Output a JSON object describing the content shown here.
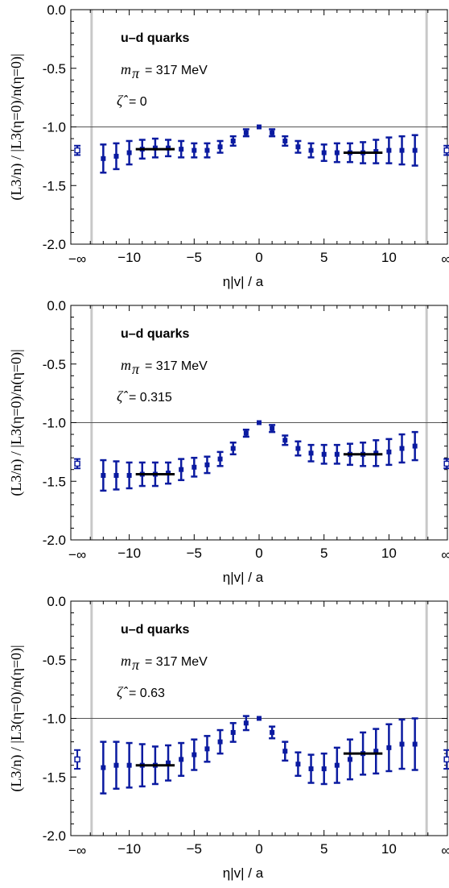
{
  "chart_data": [
    {
      "type": "scatter",
      "panel": 1,
      "annotations": {
        "title": "u–d quarks",
        "mass": "m",
        "mass_sub": "π",
        "mass_val": "= 317 MeV",
        "zeta": "ζ̂",
        "zeta_val": "= 0"
      },
      "xlabel": "η|v| / a",
      "ylabel": "(L3/n) / |L3(η=0)/n(η=0)|",
      "xlim": [
        -14.5,
        14.5
      ],
      "ylim": [
        -2.0,
        0.0
      ],
      "xticks": [
        "-10",
        "-5",
        "0",
        "5",
        "10"
      ],
      "yticks": [
        "0.0",
        "-0.5",
        "-1.0",
        "-1.5",
        "-2.0"
      ],
      "inf_labels": [
        "−∞",
        "∞"
      ],
      "reference_line": -1.0,
      "vertical_lines": [
        -12.9,
        12.9
      ],
      "points": [
        {
          "x": -12,
          "y": -1.27,
          "err": 0.12
        },
        {
          "x": -11,
          "y": -1.25,
          "err": 0.11
        },
        {
          "x": -10,
          "y": -1.22,
          "err": 0.1
        },
        {
          "x": -9,
          "y": -1.19,
          "err": 0.08
        },
        {
          "x": -8,
          "y": -1.18,
          "err": 0.08
        },
        {
          "x": -7,
          "y": -1.18,
          "err": 0.07
        },
        {
          "x": -6,
          "y": -1.19,
          "err": 0.07
        },
        {
          "x": -5,
          "y": -1.2,
          "err": 0.06
        },
        {
          "x": -4,
          "y": -1.2,
          "err": 0.06
        },
        {
          "x": -3,
          "y": -1.17,
          "err": 0.05
        },
        {
          "x": -2,
          "y": -1.12,
          "err": 0.04
        },
        {
          "x": -1,
          "y": -1.05,
          "err": 0.03
        },
        {
          "x": 0,
          "y": -1.0,
          "err": 0.0
        },
        {
          "x": 1,
          "y": -1.05,
          "err": 0.03
        },
        {
          "x": 2,
          "y": -1.12,
          "err": 0.04
        },
        {
          "x": 3,
          "y": -1.17,
          "err": 0.05
        },
        {
          "x": 4,
          "y": -1.2,
          "err": 0.06
        },
        {
          "x": 5,
          "y": -1.22,
          "err": 0.07
        },
        {
          "x": 6,
          "y": -1.22,
          "err": 0.08
        },
        {
          "x": 7,
          "y": -1.22,
          "err": 0.08
        },
        {
          "x": 8,
          "y": -1.22,
          "err": 0.09
        },
        {
          "x": 9,
          "y": -1.21,
          "err": 0.1
        },
        {
          "x": 10,
          "y": -1.2,
          "err": 0.11
        },
        {
          "x": 11,
          "y": -1.2,
          "err": 0.12
        },
        {
          "x": 12,
          "y": -1.2,
          "err": 0.13
        }
      ],
      "asymptotic_points": [
        {
          "side": "-inf",
          "y": -1.2,
          "err": 0.04
        },
        {
          "side": "inf",
          "y": -1.2,
          "err": 0.04
        }
      ],
      "fits": [
        {
          "x": [
            -9.5,
            -6.5
          ],
          "y": -1.19
        },
        {
          "x": [
            6.5,
            9.5
          ],
          "y": -1.22
        }
      ]
    },
    {
      "type": "scatter",
      "panel": 2,
      "annotations": {
        "title": "u–d quarks",
        "mass": "m",
        "mass_sub": "π",
        "mass_val": "= 317 MeV",
        "zeta": "ζ̂",
        "zeta_val": "= 0.315"
      },
      "xlabel": "η|v| / a",
      "ylabel": "(L3/n) / |L3(η=0)/n(η=0)|",
      "xlim": [
        -14.5,
        14.5
      ],
      "ylim": [
        -2.0,
        0.0
      ],
      "xticks": [
        "-10",
        "-5",
        "0",
        "5",
        "10"
      ],
      "yticks": [
        "0.0",
        "-0.5",
        "-1.0",
        "-1.5",
        "-2.0"
      ],
      "inf_labels": [
        "−∞",
        "∞"
      ],
      "reference_line": -1.0,
      "vertical_lines": [
        -12.9,
        12.9
      ],
      "points": [
        {
          "x": -12,
          "y": -1.45,
          "err": 0.13
        },
        {
          "x": -11,
          "y": -1.45,
          "err": 0.12
        },
        {
          "x": -10,
          "y": -1.45,
          "err": 0.11
        },
        {
          "x": -9,
          "y": -1.44,
          "err": 0.1
        },
        {
          "x": -8,
          "y": -1.44,
          "err": 0.1
        },
        {
          "x": -7,
          "y": -1.43,
          "err": 0.09
        },
        {
          "x": -6,
          "y": -1.4,
          "err": 0.09
        },
        {
          "x": -5,
          "y": -1.38,
          "err": 0.08
        },
        {
          "x": -4,
          "y": -1.36,
          "err": 0.07
        },
        {
          "x": -3,
          "y": -1.31,
          "err": 0.06
        },
        {
          "x": -2,
          "y": -1.22,
          "err": 0.05
        },
        {
          "x": -1,
          "y": -1.09,
          "err": 0.03
        },
        {
          "x": 0,
          "y": -1.0,
          "err": 0.0
        },
        {
          "x": 1,
          "y": -1.05,
          "err": 0.03
        },
        {
          "x": 2,
          "y": -1.15,
          "err": 0.04
        },
        {
          "x": 3,
          "y": -1.22,
          "err": 0.06
        },
        {
          "x": 4,
          "y": -1.26,
          "err": 0.07
        },
        {
          "x": 5,
          "y": -1.27,
          "err": 0.08
        },
        {
          "x": 6,
          "y": -1.27,
          "err": 0.08
        },
        {
          "x": 7,
          "y": -1.27,
          "err": 0.09
        },
        {
          "x": 8,
          "y": -1.27,
          "err": 0.1
        },
        {
          "x": 9,
          "y": -1.26,
          "err": 0.11
        },
        {
          "x": 10,
          "y": -1.25,
          "err": 0.11
        },
        {
          "x": 11,
          "y": -1.22,
          "err": 0.12
        },
        {
          "x": 12,
          "y": -1.2,
          "err": 0.12
        }
      ],
      "asymptotic_points": [
        {
          "side": "-inf",
          "y": -1.35,
          "err": 0.04
        },
        {
          "side": "inf",
          "y": -1.35,
          "err": 0.04
        }
      ],
      "fits": [
        {
          "x": [
            -9.5,
            -6.5
          ],
          "y": -1.44
        },
        {
          "x": [
            6.5,
            9.5
          ],
          "y": -1.27
        }
      ]
    },
    {
      "type": "scatter",
      "panel": 3,
      "annotations": {
        "title": "u–d quarks",
        "mass": "m",
        "mass_sub": "π",
        "mass_val": "= 317 MeV",
        "zeta": "ζ̂",
        "zeta_val": "= 0.63"
      },
      "xlabel": "η|v| / a",
      "ylabel": "(L3/n) / |L3(η=0)/n(η=0)|",
      "xlim": [
        -14.5,
        14.5
      ],
      "ylim": [
        -2.0,
        0.0
      ],
      "xticks": [
        "-10",
        "-5",
        "0",
        "5",
        "10"
      ],
      "yticks": [
        "0.0",
        "-0.5",
        "-1.0",
        "-1.5",
        "-2.0"
      ],
      "inf_labels": [
        "−∞",
        "∞"
      ],
      "reference_line": -1.0,
      "vertical_lines": [
        -12.9,
        12.9
      ],
      "points": [
        {
          "x": -12,
          "y": -1.42,
          "err": 0.22
        },
        {
          "x": -11,
          "y": -1.4,
          "err": 0.2
        },
        {
          "x": -10,
          "y": -1.4,
          "err": 0.19
        },
        {
          "x": -9,
          "y": -1.4,
          "err": 0.18
        },
        {
          "x": -8,
          "y": -1.4,
          "err": 0.16
        },
        {
          "x": -7,
          "y": -1.38,
          "err": 0.15
        },
        {
          "x": -6,
          "y": -1.35,
          "err": 0.14
        },
        {
          "x": -5,
          "y": -1.31,
          "err": 0.13
        },
        {
          "x": -4,
          "y": -1.26,
          "err": 0.11
        },
        {
          "x": -3,
          "y": -1.2,
          "err": 0.1
        },
        {
          "x": -2,
          "y": -1.12,
          "err": 0.08
        },
        {
          "x": -1,
          "y": -1.04,
          "err": 0.06
        },
        {
          "x": 0,
          "y": -1.0,
          "err": 0.0
        },
        {
          "x": 1,
          "y": -1.12,
          "err": 0.05
        },
        {
          "x": 2,
          "y": -1.28,
          "err": 0.08
        },
        {
          "x": 3,
          "y": -1.39,
          "err": 0.1
        },
        {
          "x": 4,
          "y": -1.43,
          "err": 0.12
        },
        {
          "x": 5,
          "y": -1.43,
          "err": 0.13
        },
        {
          "x": 6,
          "y": -1.4,
          "err": 0.15
        },
        {
          "x": 7,
          "y": -1.35,
          "err": 0.17
        },
        {
          "x": 8,
          "y": -1.3,
          "err": 0.18
        },
        {
          "x": 9,
          "y": -1.28,
          "err": 0.19
        },
        {
          "x": 10,
          "y": -1.25,
          "err": 0.2
        },
        {
          "x": 11,
          "y": -1.22,
          "err": 0.21
        },
        {
          "x": 12,
          "y": -1.22,
          "err": 0.22
        }
      ],
      "asymptotic_points": [
        {
          "side": "-inf",
          "y": -1.35,
          "err": 0.08
        },
        {
          "side": "inf",
          "y": -1.35,
          "err": 0.08
        }
      ],
      "fits": [
        {
          "x": [
            -9.5,
            -6.5
          ],
          "y": -1.4
        },
        {
          "x": [
            6.5,
            9.5
          ],
          "y": -1.3
        }
      ]
    }
  ],
  "colors": {
    "points": "#0a1aa0",
    "fit": "#000000",
    "vline": "#c8c8c8",
    "axis": "#000000"
  }
}
